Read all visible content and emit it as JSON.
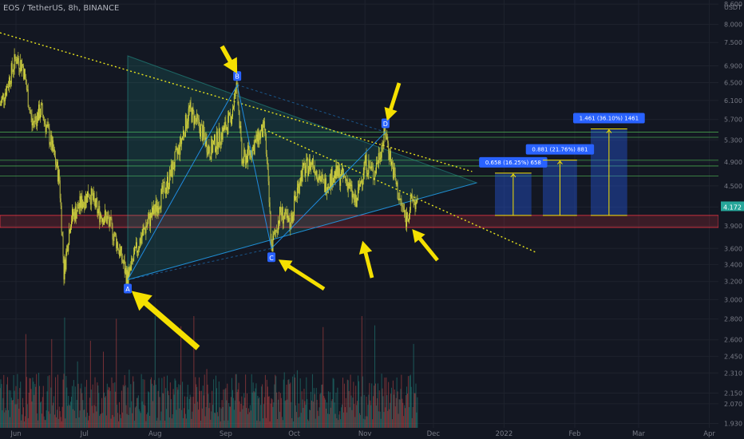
{
  "header": {
    "title": "EOS / TetherUS, 8h, BINANCE"
  },
  "price_axis": {
    "unit": "USDT",
    "ticks": [
      "8.600",
      "8.000",
      "7.500",
      "6.900",
      "6.500",
      "6.100",
      "5.700",
      "5.300",
      "4.900",
      "4.500",
      "4.172",
      "3.900",
      "3.600",
      "3.400",
      "3.200",
      "3.000",
      "2.800",
      "2.600",
      "2.450",
      "2.310",
      "2.150",
      "2.070",
      "1.930"
    ],
    "current_price": "4.172"
  },
  "time_axis": {
    "labels": [
      "Jun",
      "Jul",
      "Aug",
      "Sep",
      "Oct",
      "Nov",
      "Dec",
      "2022",
      "Feb",
      "Mar",
      "Apr"
    ]
  },
  "pattern_points": [
    {
      "label": "A",
      "date": "2021-07-20",
      "price": 3.22
    },
    {
      "label": "B",
      "date": "2021-09-06",
      "price": 6.45
    },
    {
      "label": "C",
      "date": "2021-09-21",
      "price": 3.6
    },
    {
      "label": "D",
      "date": "2021-11-10",
      "price": 5.45
    }
  ],
  "targets": [
    {
      "text": "0.658 (16.25%) 658"
    },
    {
      "text": "0.881 (21.76%) 881"
    },
    {
      "text": "1.461 (36.10%) 1461"
    }
  ],
  "colors": {
    "background": "#131722",
    "candle_up": "#d6d83a",
    "candle_down": "#c9c93a",
    "triangle": "#26a69a",
    "pattern_line": "#2196f3",
    "trendline_dotted": "#e6e21d",
    "support_zone": "#f23645",
    "resistance_lines": "#4caf50",
    "target_box": "#2962ff",
    "arrow": "#f5e000",
    "price_label_bg": "#26a69a"
  },
  "chart_data": {
    "type": "candlestick",
    "title": "EOS / TetherUS, 8h, BINANCE",
    "y_scale": "log",
    "ylim": [
      1.9,
      8.7
    ],
    "xlim": [
      "2021-05-25",
      "2022-04-05"
    ],
    "current_price": 4.172,
    "pattern_points": [
      {
        "label": "A",
        "date": "2021-07-20",
        "price": 3.22
      },
      {
        "label": "B",
        "date": "2021-09-06",
        "price": 6.45
      },
      {
        "label": "C",
        "date": "2021-09-21",
        "price": 3.6
      },
      {
        "label": "D",
        "date": "2021-11-10",
        "price": 5.45
      }
    ],
    "support_zone": [
      3.88,
      4.05
    ],
    "resistance_levels": [
      4.66,
      4.83,
      4.93,
      5.35,
      5.45
    ],
    "targets": [
      {
        "text": "0.658 (16.25%) 658",
        "change": 0.658,
        "percent": 16.25,
        "from": 4.05,
        "to": 4.708
      },
      {
        "text": "0.881 (21.76%) 881",
        "change": 0.881,
        "percent": 21.76,
        "from": 4.05,
        "to": 4.931
      },
      {
        "text": "1.461 (36.10%) 1461",
        "change": 1.461,
        "percent": 36.1,
        "from": 4.05,
        "to": 5.511
      }
    ],
    "price_path": [
      [
        "2021-05-25",
        6.0
      ],
      [
        "2021-05-28",
        6.4
      ],
      [
        "2021-06-01",
        7.1
      ],
      [
        "2021-06-04",
        6.9
      ],
      [
        "2021-06-08",
        5.6
      ],
      [
        "2021-06-12",
        5.9
      ],
      [
        "2021-06-16",
        5.3
      ],
      [
        "2021-06-20",
        4.6
      ],
      [
        "2021-06-22",
        3.3
      ],
      [
        "2021-06-25",
        4.0
      ],
      [
        "2021-06-29",
        4.2
      ],
      [
        "2021-07-03",
        4.4
      ],
      [
        "2021-07-07",
        4.1
      ],
      [
        "2021-07-11",
        4.0
      ],
      [
        "2021-07-15",
        3.7
      ],
      [
        "2021-07-20",
        3.22
      ],
      [
        "2021-07-24",
        3.6
      ],
      [
        "2021-07-28",
        3.9
      ],
      [
        "2021-08-02",
        4.2
      ],
      [
        "2021-08-07",
        4.6
      ],
      [
        "2021-08-12",
        5.2
      ],
      [
        "2021-08-16",
        5.9
      ],
      [
        "2021-08-21",
        5.5
      ],
      [
        "2021-08-25",
        5.1
      ],
      [
        "2021-08-30",
        5.4
      ],
      [
        "2021-09-03",
        5.7
      ],
      [
        "2021-09-06",
        6.45
      ],
      [
        "2021-09-08",
        4.9
      ],
      [
        "2021-09-12",
        5.1
      ],
      [
        "2021-09-16",
        5.4
      ],
      [
        "2021-09-18",
        5.5
      ],
      [
        "2021-09-21",
        3.6
      ],
      [
        "2021-09-25",
        4.1
      ],
      [
        "2021-09-29",
        3.9
      ],
      [
        "2021-10-04",
        4.7
      ],
      [
        "2021-10-09",
        4.9
      ],
      [
        "2021-10-14",
        4.5
      ],
      [
        "2021-10-19",
        4.7
      ],
      [
        "2021-10-24",
        4.6
      ],
      [
        "2021-10-28",
        4.2
      ],
      [
        "2021-11-01",
        4.9
      ],
      [
        "2021-11-05",
        4.7
      ],
      [
        "2021-11-10",
        5.45
      ],
      [
        "2021-11-13",
        4.8
      ],
      [
        "2021-11-16",
        4.3
      ],
      [
        "2021-11-19",
        4.0
      ],
      [
        "2021-11-22",
        4.3
      ],
      [
        "2021-11-24",
        4.172
      ]
    ],
    "volume_max": 1.0
  }
}
